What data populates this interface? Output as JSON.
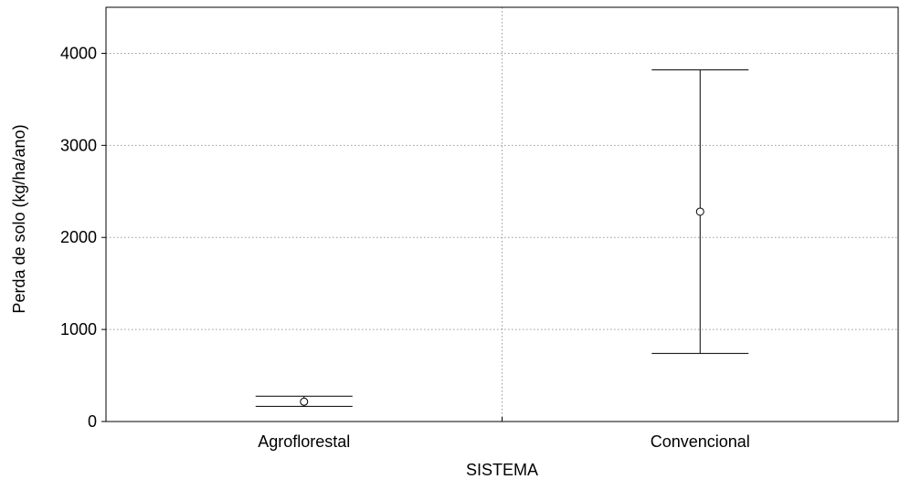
{
  "chart_data": {
    "type": "errorbar",
    "title": "",
    "xlabel": "SISTEMA",
    "ylabel": "Perda de solo (kg/ha/ano)",
    "ylim": [
      0,
      4500
    ],
    "yticks": [
      0,
      1000,
      2000,
      3000,
      4000
    ],
    "ytick_labels": [
      "0",
      "1000",
      "2000",
      "3000",
      "4000"
    ],
    "grid": true,
    "legend": "none",
    "categories": [
      "Agroflorestal",
      "Convencional"
    ],
    "series": [
      {
        "mean": [
          215,
          2280
        ],
        "lower": [
          165,
          740
        ],
        "upper": [
          275,
          3820
        ]
      }
    ]
  }
}
